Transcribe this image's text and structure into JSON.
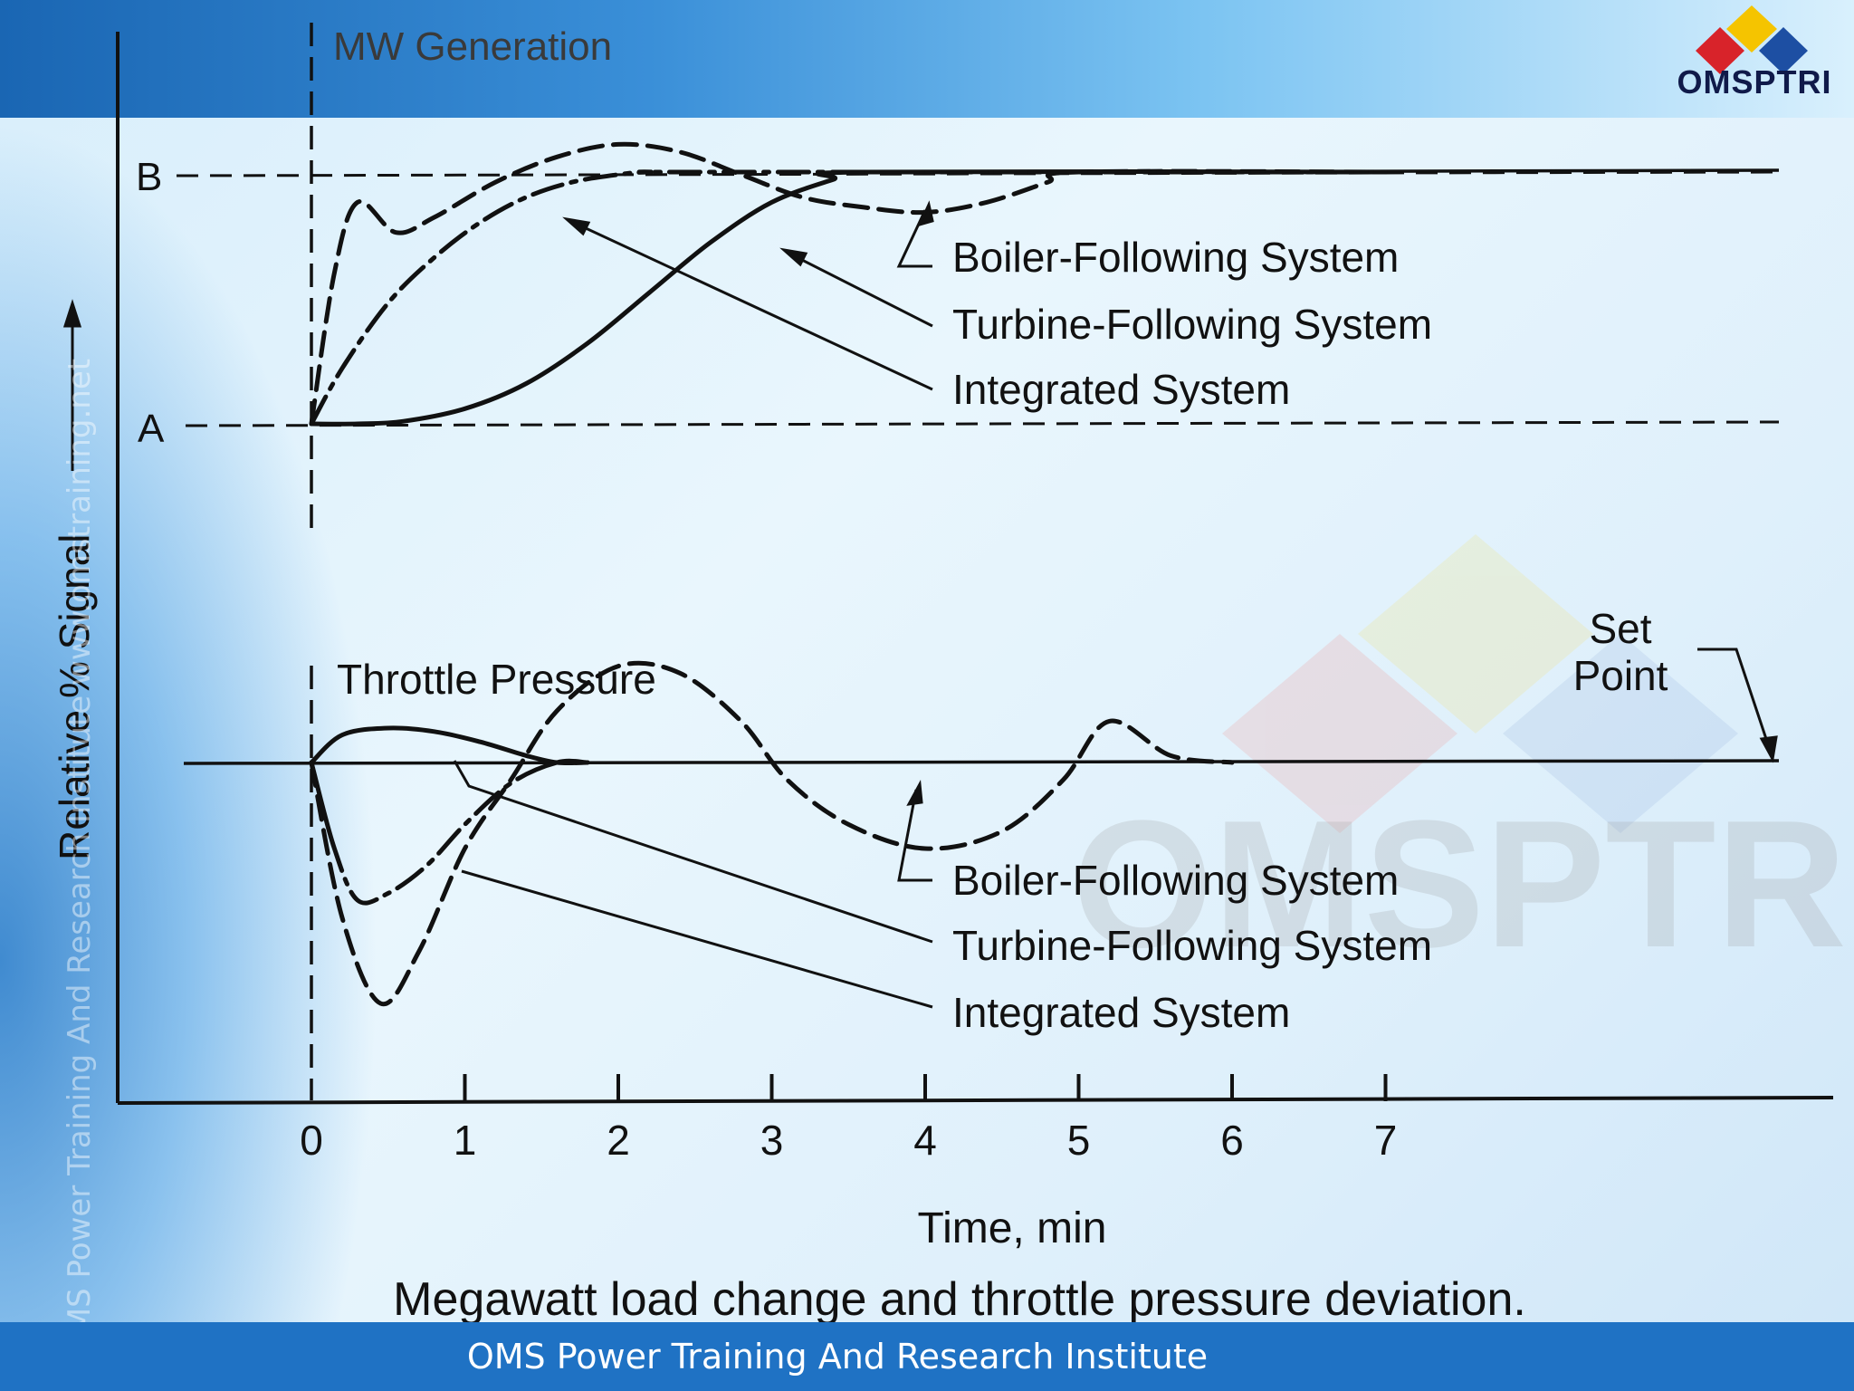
{
  "branding": {
    "logo_text": "OMSPTRI",
    "watermark_text": "OMSPTRI",
    "side_watermark": "OMS Power Training And Research Institute  www.omstraining.net",
    "footer_text": "OMS Power Training And Research Institute",
    "colors": {
      "header_dark": "#1a66b3",
      "footer": "#1f72c4",
      "logo_red": "#d8232a",
      "logo_yellow": "#f5c400",
      "logo_blue": "#1d4fa3"
    }
  },
  "chart_data": {
    "type": "line",
    "title": "Megawatt load change and throttle pressure deviation.",
    "xlabel": "Time, min",
    "ylabel": "Relative % Signal",
    "xlim": [
      0,
      7
    ],
    "x_ticks": [
      "0",
      "1",
      "2",
      "3",
      "4",
      "5",
      "6",
      "7"
    ],
    "panels": [
      {
        "name": "MW Generation",
        "levels": {
          "A": 0,
          "B": 100
        },
        "level_labels": [
          "A",
          "B"
        ],
        "ylim": [
          -30,
          110
        ],
        "legend": [
          "Boiler-Following System",
          "Turbine-Following System",
          "Integrated System"
        ],
        "series": [
          {
            "name": "Boiler-Following System",
            "style": "dashed",
            "x": [
              0,
              0.15,
              0.3,
              0.55,
              0.8,
              1.2,
              1.6,
              2.0,
              2.4,
              2.8,
              3.2,
              3.6,
              4.0,
              4.4,
              4.8,
              5.0,
              7.0
            ],
            "y": [
              0,
              60,
              88,
              76,
              82,
              96,
              106,
              111,
              108,
              99,
              90,
              86,
              84,
              88,
              96,
              100,
              100
            ]
          },
          {
            "name": "Turbine-Following System",
            "style": "solid",
            "x": [
              0,
              0.3,
              0.6,
              1.0,
              1.4,
              1.8,
              2.2,
              2.6,
              3.0,
              3.4,
              3.6,
              7.0
            ],
            "y": [
              0,
              0,
              1,
              6,
              16,
              32,
              52,
              72,
              88,
              97,
              100,
              100
            ]
          },
          {
            "name": "Integrated System",
            "style": "dash-dot",
            "x": [
              0,
              0.2,
              0.5,
              0.8,
              1.1,
              1.4,
              1.7,
              2.0,
              2.2,
              2.6,
              7.0
            ],
            "y": [
              0,
              22,
              48,
              66,
              80,
              90,
              96,
              99,
              100,
              100,
              100
            ]
          }
        ]
      },
      {
        "name": "Throttle Pressure",
        "setpoint_label": "Set Point",
        "ylim": [
          -100,
          50
        ],
        "legend": [
          "Boiler-Following System",
          "Turbine-Following System",
          "Integrated System"
        ],
        "series": [
          {
            "name": "Boiler-Following System",
            "style": "dashed",
            "x": [
              0,
              0.2,
              0.45,
              0.7,
              1.0,
              1.3,
              1.6,
              2.0,
              2.4,
              2.8,
              3.1,
              3.5,
              4.0,
              4.5,
              4.9,
              5.2,
              5.6,
              6.0
            ],
            "y": [
              0,
              -45,
              -70,
              -55,
              -25,
              -5,
              15,
              28,
              26,
              12,
              -5,
              -18,
              -25,
              -20,
              -5,
              12,
              2,
              0
            ]
          },
          {
            "name": "Turbine-Following System",
            "style": "solid",
            "x": [
              0,
              0.2,
              0.5,
              0.8,
              1.1,
              1.4,
              1.6,
              1.8
            ],
            "y": [
              0,
              8,
              10,
              9,
              6,
              2,
              0,
              0
            ]
          },
          {
            "name": "Integrated System",
            "style": "solid-then-dash-dot",
            "x": [
              0,
              0.15,
              0.3,
              0.5,
              0.75,
              1.0,
              1.3,
              1.6,
              1.8
            ],
            "y": [
              0,
              -25,
              -40,
              -38,
              -30,
              -18,
              -6,
              0,
              0
            ]
          }
        ]
      }
    ]
  }
}
